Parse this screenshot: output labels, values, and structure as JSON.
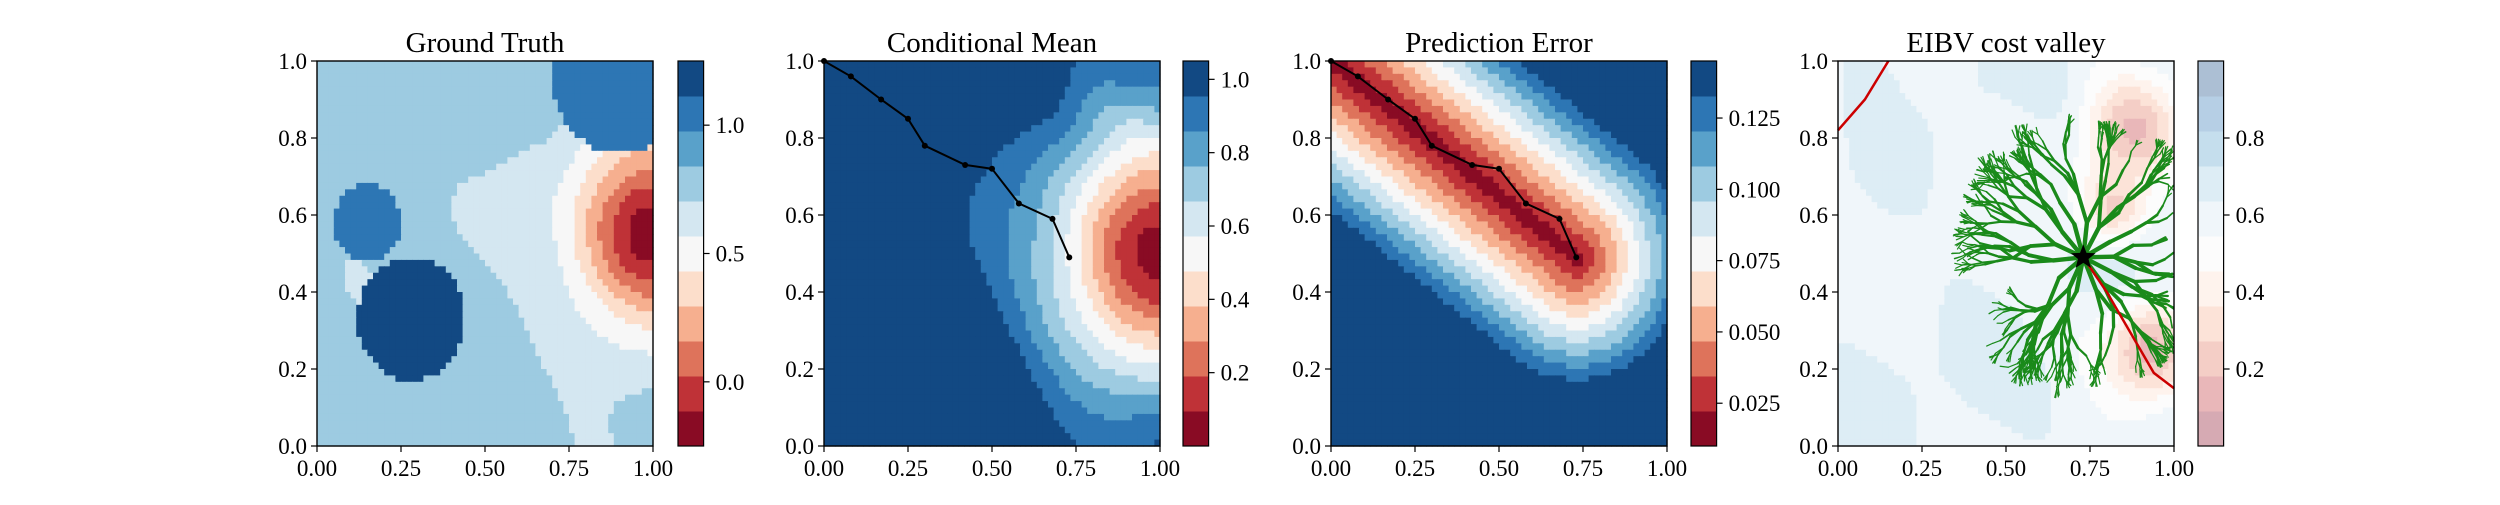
{
  "chart_data": [
    {
      "type": "heatmap",
      "title": "Ground Truth",
      "xlabel": "",
      "ylabel": "",
      "xlim": [
        0,
        1
      ],
      "ylim": [
        0,
        1
      ],
      "x_ticks": [
        "0.00",
        "0.25",
        "0.50",
        "0.75",
        "1.00"
      ],
      "y_ticks": [
        "0.0",
        "0.2",
        "0.4",
        "0.6",
        "0.8",
        "1.0"
      ],
      "colormap": "RdBu",
      "colorbar": {
        "range": [
          -0.25,
          1.25
        ],
        "ticks": [
          0.0,
          0.5,
          1.0
        ],
        "tick_labels": [
          "0.0",
          "0.5",
          "1.0"
        ]
      },
      "field": {
        "background": 0.75,
        "hotspot": {
          "center": [
            1.0,
            0.55
          ],
          "value": -0.2,
          "radius": 0.25
        },
        "blobs": [
          {
            "center": [
              0.28,
              0.33
            ],
            "value": 1.12,
            "radius": 0.16
          },
          {
            "center": [
              0.15,
              0.58
            ],
            "value": 1.05,
            "radius": 0.1
          },
          {
            "center": [
              0.9,
              0.96
            ],
            "value": 1.08,
            "radius": 0.2
          }
        ]
      }
    },
    {
      "type": "heatmap",
      "title": "Conditional Mean",
      "xlabel": "",
      "ylabel": "",
      "xlim": [
        0,
        1
      ],
      "ylim": [
        0,
        1
      ],
      "x_ticks": [
        "0.00",
        "0.25",
        "0.50",
        "0.75",
        "1.00"
      ],
      "y_ticks": [
        "0.0",
        "0.2",
        "0.4",
        "0.6",
        "0.8",
        "1.0"
      ],
      "colormap": "RdBu",
      "colorbar": {
        "range": [
          0.0,
          1.05
        ],
        "ticks": [
          0.2,
          0.4,
          0.6,
          0.8,
          1.0
        ],
        "tick_labels": [
          "0.2",
          "0.4",
          "0.6",
          "0.8",
          "1.0"
        ]
      },
      "field": {
        "background": 1.05,
        "hotspot": {
          "center": [
            1.0,
            0.5
          ],
          "value": 0.05,
          "radius": 0.35
        }
      },
      "path": [
        [
          0.0,
          1.0
        ],
        [
          0.08,
          0.96
        ],
        [
          0.17,
          0.9
        ],
        [
          0.25,
          0.85
        ],
        [
          0.3,
          0.78
        ],
        [
          0.42,
          0.73
        ],
        [
          0.5,
          0.72
        ],
        [
          0.58,
          0.63
        ],
        [
          0.68,
          0.59
        ],
        [
          0.73,
          0.49
        ]
      ]
    },
    {
      "type": "heatmap",
      "title": "Prediction Error",
      "xlabel": "",
      "ylabel": "",
      "xlim": [
        0,
        1
      ],
      "ylim": [
        0,
        1
      ],
      "x_ticks": [
        "0.00",
        "0.25",
        "0.50",
        "0.75",
        "1.00"
      ],
      "y_ticks": [
        "0.0",
        "0.2",
        "0.4",
        "0.6",
        "0.8",
        "1.0"
      ],
      "colormap": "RdBu",
      "colorbar": {
        "range": [
          0.01,
          0.145
        ],
        "ticks": [
          0.025,
          0.05,
          0.075,
          0.1,
          0.125
        ],
        "tick_labels": [
          "0.025",
          "0.050",
          "0.075",
          "0.100",
          "0.125"
        ]
      },
      "field": {
        "min": 0.015,
        "max": 0.145,
        "buffer_width": 0.35,
        "along": [
          [
            0.0,
            1.0
          ],
          [
            0.73,
            0.49
          ]
        ]
      },
      "path": [
        [
          0.0,
          1.0
        ],
        [
          0.08,
          0.96
        ],
        [
          0.17,
          0.9
        ],
        [
          0.25,
          0.85
        ],
        [
          0.3,
          0.78
        ],
        [
          0.42,
          0.73
        ],
        [
          0.5,
          0.72
        ],
        [
          0.58,
          0.63
        ],
        [
          0.68,
          0.59
        ],
        [
          0.73,
          0.49
        ]
      ]
    },
    {
      "type": "heatmap",
      "title": "EIBV cost valley",
      "xlabel": "",
      "ylabel": "",
      "xlim": [
        0,
        1
      ],
      "ylim": [
        0,
        1
      ],
      "x_ticks": [
        "0.00",
        "0.25",
        "0.50",
        "0.75",
        "1.00"
      ],
      "y_ticks": [
        "0.0",
        "0.2",
        "0.4",
        "0.6",
        "0.8",
        "1.0"
      ],
      "colormap": "RdBu_light",
      "colorbar": {
        "range": [
          0.0,
          1.0
        ],
        "ticks": [
          0.2,
          0.4,
          0.6,
          0.8
        ],
        "tick_labels": [
          "0.2",
          "0.4",
          "0.6",
          "0.8"
        ]
      },
      "field": {
        "background": 0.62,
        "highlights": [
          {
            "center": [
              0.88,
              0.82
            ],
            "value": 0.15,
            "radius": 0.09
          },
          {
            "center": [
              0.93,
              0.25
            ],
            "value": 0.15,
            "radius": 0.09
          },
          {
            "center": [
              0.82,
              0.63
            ],
            "value": 0.25,
            "radius": 0.07
          }
        ]
      },
      "current_location": [
        0.73,
        0.49
      ],
      "tree_color": "#1a8a1a",
      "selected_path_color": "#cc0000",
      "selected_paths": [
        [
          [
            0.73,
            0.49
          ],
          [
            0.8,
            0.4
          ],
          [
            0.88,
            0.28
          ],
          [
            0.94,
            0.19
          ],
          [
            1.0,
            0.15
          ]
        ],
        [
          [
            0.0,
            0.82
          ],
          [
            0.08,
            0.9
          ],
          [
            0.15,
            1.0
          ]
        ]
      ]
    }
  ]
}
